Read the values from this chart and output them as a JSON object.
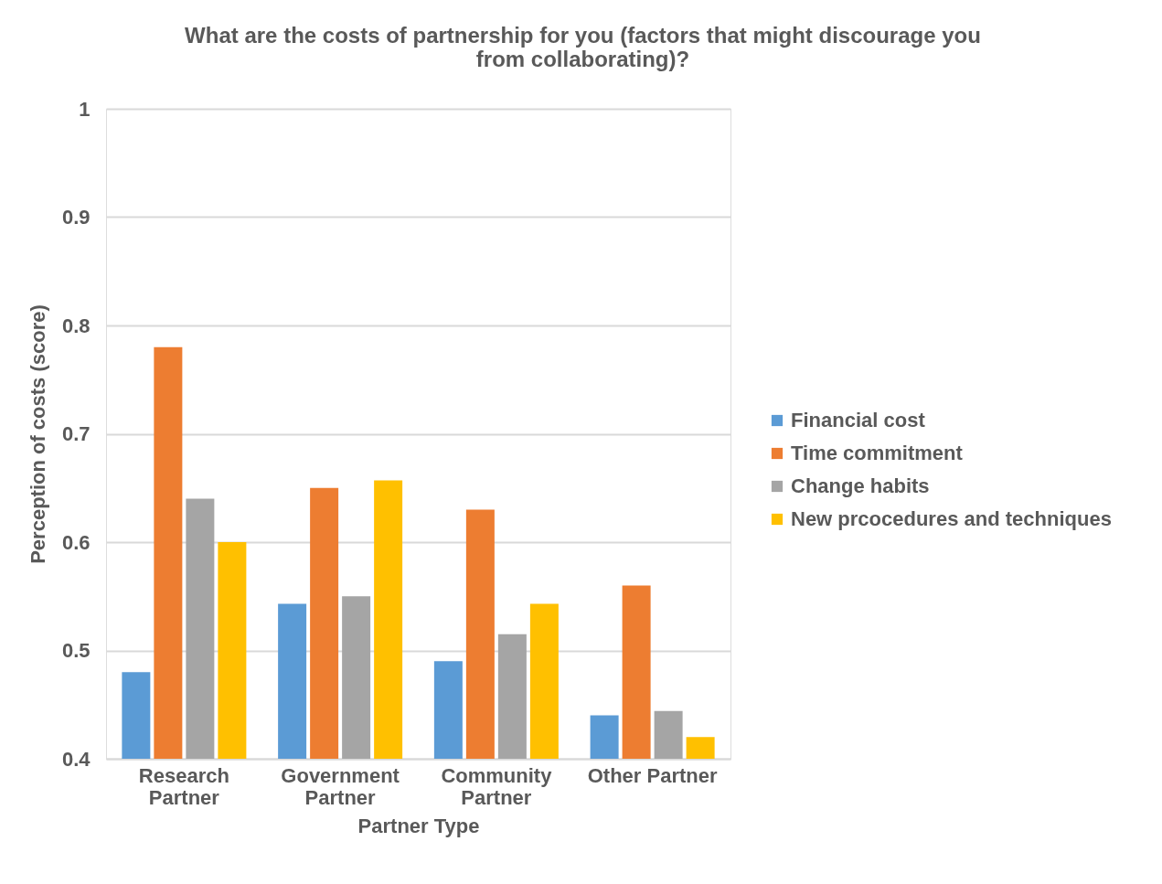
{
  "chart_data": {
    "type": "bar",
    "title": "What are the costs of partnership for you (factors that might discourage you from collaborating)?",
    "xlabel": "Partner Type",
    "ylabel": "Perception of costs (score)",
    "categories": [
      "Research Partner",
      "Government Partner",
      "Community Partner",
      "Other Partner"
    ],
    "series": [
      {
        "name": "Financial cost",
        "color": "#5b9bd5",
        "values": [
          0.48,
          0.543,
          0.49,
          0.44
        ]
      },
      {
        "name": "Time commitment",
        "color": "#ed7d31",
        "values": [
          0.78,
          0.65,
          0.63,
          0.56
        ]
      },
      {
        "name": "Change habits",
        "color": "#a5a5a5",
        "values": [
          0.64,
          0.55,
          0.515,
          0.444
        ]
      },
      {
        "name": "New prcocedures and techniques",
        "color": "#ffc000",
        "values": [
          0.6,
          0.657,
          0.543,
          0.42
        ]
      }
    ],
    "ylim": [
      0.4,
      1
    ],
    "yticks": [
      0.4,
      0.5,
      0.6,
      0.7,
      0.8,
      0.9,
      1
    ],
    "grid": "y",
    "legend": "right"
  }
}
